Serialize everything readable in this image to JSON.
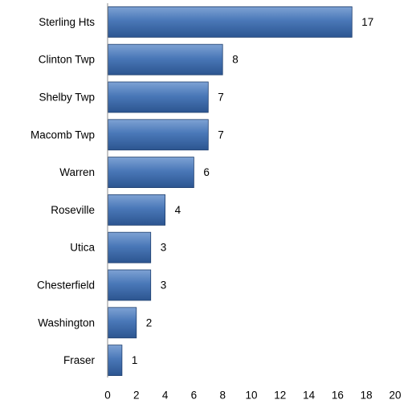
{
  "chart_data": {
    "type": "bar",
    "orientation": "horizontal",
    "categories": [
      "Sterling Hts",
      "Clinton Twp",
      "Shelby Twp",
      "Macomb Twp",
      "Warren",
      "Roseville",
      "Utica",
      "Chesterfield",
      "Washington",
      "Fraser"
    ],
    "values": [
      17,
      8,
      7,
      7,
      6,
      4,
      3,
      3,
      2,
      1
    ],
    "xlim": [
      0,
      20
    ],
    "x_ticks": [
      0,
      2,
      4,
      6,
      8,
      10,
      12,
      14,
      16,
      18,
      20
    ],
    "title": "",
    "xlabel": "",
    "ylabel": "",
    "grid": false,
    "legend": "none",
    "data_labels": true,
    "colors": {
      "bar_top": "#7ea2d4",
      "bar_mid": "#4a78b8",
      "bar_bottom": "#2c5590",
      "bar_stroke": "#1f3f6e",
      "axis": "#8c8c8c"
    }
  }
}
